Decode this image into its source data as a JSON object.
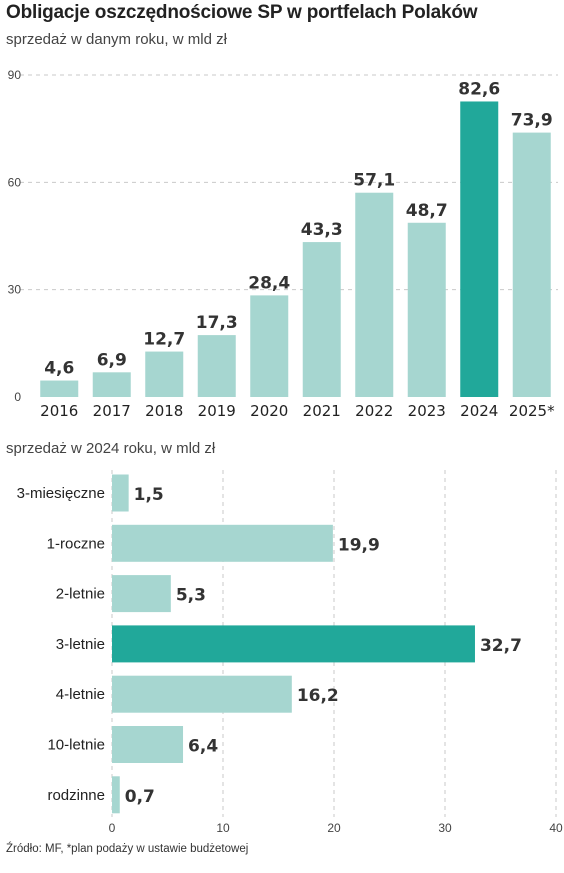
{
  "header": {
    "title": "Obligacje oszczędnościowe SP w portfelach Polaków",
    "subtitle": "sprzedaż w danym roku, w mld zł"
  },
  "colors": {
    "bar": "#a6d6d0",
    "highlight": "#21a89a",
    "grid": "#c9c9c9"
  },
  "chart_data": [
    {
      "type": "bar",
      "orientation": "vertical",
      "subtitle": "sprzedaż w danym roku, w mld zł",
      "categories": [
        "2016",
        "2017",
        "2018",
        "2019",
        "2020",
        "2021",
        "2022",
        "2023",
        "2024",
        "2025*"
      ],
      "values": [
        4.6,
        6.9,
        12.7,
        17.3,
        28.4,
        43.3,
        57.1,
        48.7,
        82.6,
        73.9
      ],
      "value_labels": [
        "4,6",
        "6,9",
        "12,7",
        "17,3",
        "28,4",
        "43,3",
        "57,1",
        "48,7",
        "82,6",
        "73,9"
      ],
      "highlight": "2024",
      "ylim": [
        0,
        90
      ],
      "yticks": [
        0,
        30,
        60,
        90
      ],
      "ytick_labels": [
        "0",
        "30",
        "60",
        "90"
      ],
      "grid": true
    },
    {
      "type": "bar",
      "orientation": "horizontal",
      "subtitle": "sprzedaż w 2024 roku, w mld zł",
      "categories": [
        "3-miesięczne",
        "1-roczne",
        "2-letnie",
        "3-letnie",
        "4-letnie",
        "10-letnie",
        "rodzinne"
      ],
      "values": [
        1.5,
        19.9,
        5.3,
        32.7,
        16.2,
        6.4,
        0.7
      ],
      "value_labels": [
        "1,5",
        "19,9",
        "5,3",
        "32,7",
        "16,2",
        "6,4",
        "0,7"
      ],
      "highlight": "3-letnie",
      "xlim": [
        0,
        40
      ],
      "xticks": [
        0,
        10,
        20,
        30,
        40
      ],
      "xtick_labels": [
        "0",
        "10",
        "20",
        "30",
        "40"
      ],
      "grid": true
    }
  ],
  "footer": {
    "note": "Źródło: MF, *plan podaży w ustawie budżetowej"
  }
}
